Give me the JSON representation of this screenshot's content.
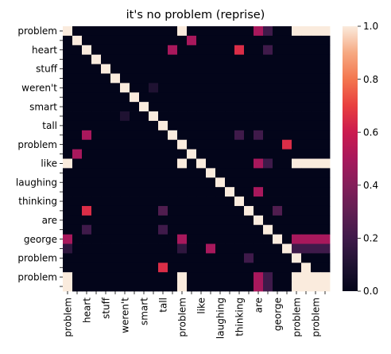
{
  "chart_data": {
    "type": "heatmap",
    "title": "it's no problem (reprise)",
    "labels": [
      "problem",
      "heart",
      "stuff",
      "weren't",
      "smart",
      "tall",
      "problem",
      "like",
      "laughing",
      "thinking",
      "are",
      "george",
      "problem",
      "problem"
    ],
    "row_tick_labels": [
      "problem",
      "",
      "heart",
      "",
      "stuff",
      "",
      "weren't",
      "",
      "smart",
      "",
      "tall",
      "",
      "problem",
      "",
      "like",
      "",
      "laughing",
      "",
      "thinking",
      "",
      "are",
      "",
      "george",
      "",
      "problem",
      "",
      "problem",
      ""
    ],
    "col_tick_labels": [
      "problem",
      "",
      "heart",
      "",
      "stuff",
      "",
      "weren't",
      "",
      "smart",
      "",
      "tall",
      "",
      "problem",
      "",
      "like",
      "",
      "laughing",
      "",
      "thinking",
      "",
      "are",
      "",
      "george",
      "",
      "problem",
      "",
      "problem",
      ""
    ],
    "colorbar": {
      "min": 0.0,
      "max": 1.0,
      "ticks": [
        "0.0",
        "0.2",
        "0.4",
        "0.6",
        "0.8",
        "1.0"
      ]
    },
    "colormap": "rocket",
    "matrix": [
      [
        1,
        0,
        0,
        0,
        0,
        0,
        0,
        0,
        0,
        0,
        0,
        0,
        1,
        0,
        0,
        0,
        0,
        0,
        0,
        0,
        0.5,
        0.2,
        0,
        0,
        1,
        1,
        1,
        1
      ],
      [
        0,
        1,
        0,
        0,
        0,
        0,
        0,
        0,
        0,
        0,
        0,
        0,
        0,
        0.5,
        0,
        0,
        0,
        0,
        0,
        0,
        0,
        0,
        0,
        0,
        0,
        0,
        0,
        0
      ],
      [
        0,
        0,
        1,
        0,
        0,
        0,
        0,
        0,
        0,
        0,
        0,
        0.5,
        0,
        0,
        0,
        0,
        0,
        0,
        0.65,
        0,
        0,
        0.2,
        0,
        0,
        0,
        0,
        0,
        0
      ],
      [
        0,
        0,
        0,
        1,
        0,
        0,
        0,
        0,
        0,
        0,
        0,
        0,
        0,
        0,
        0,
        0,
        0,
        0,
        0,
        0,
        0,
        0,
        0,
        0,
        0,
        0,
        0,
        0
      ],
      [
        0,
        0,
        0,
        0,
        1,
        0,
        0,
        0,
        0,
        0,
        0,
        0,
        0,
        0,
        0,
        0,
        0,
        0,
        0,
        0,
        0,
        0,
        0,
        0,
        0,
        0,
        0,
        0
      ],
      [
        0,
        0,
        0,
        0,
        0,
        1,
        0,
        0,
        0,
        0,
        0,
        0,
        0,
        0,
        0,
        0,
        0,
        0,
        0,
        0,
        0,
        0,
        0,
        0,
        0,
        0,
        0,
        0
      ],
      [
        0,
        0,
        0,
        0,
        0,
        0,
        1,
        0,
        0,
        0.1,
        0,
        0,
        0,
        0,
        0,
        0,
        0,
        0,
        0,
        0,
        0,
        0,
        0,
        0,
        0,
        0,
        0,
        0
      ],
      [
        0,
        0,
        0,
        0,
        0,
        0,
        0,
        1,
        0,
        0,
        0,
        0,
        0,
        0,
        0,
        0,
        0,
        0,
        0,
        0,
        0,
        0,
        0,
        0,
        0,
        0,
        0,
        0
      ],
      [
        0,
        0,
        0,
        0,
        0,
        0,
        0,
        0,
        1,
        0,
        0,
        0,
        0,
        0,
        0,
        0,
        0,
        0,
        0,
        0,
        0,
        0,
        0,
        0,
        0,
        0,
        0,
        0
      ],
      [
        0,
        0,
        0,
        0,
        0,
        0,
        0.1,
        0,
        0,
        1,
        0,
        0,
        0,
        0,
        0,
        0,
        0,
        0,
        0,
        0,
        0,
        0,
        0,
        0,
        0,
        0,
        0,
        0
      ],
      [
        0,
        0,
        0,
        0,
        0,
        0,
        0,
        0,
        0,
        0,
        1,
        0,
        0,
        0,
        0,
        0,
        0,
        0,
        0,
        0,
        0,
        0,
        0,
        0,
        0,
        0,
        0,
        0
      ],
      [
        0,
        0,
        0.5,
        0,
        0,
        0,
        0,
        0,
        0,
        0,
        0,
        1,
        0,
        0,
        0,
        0,
        0,
        0,
        0.2,
        0,
        0.2,
        0,
        0,
        0,
        0,
        0,
        0,
        0
      ],
      [
        0,
        0,
        0,
        0,
        0,
        0,
        0,
        0,
        0,
        0,
        0,
        0,
        1,
        0,
        0,
        0,
        0,
        0,
        0,
        0,
        0,
        0,
        0,
        0.65,
        0,
        0,
        0,
        0
      ],
      [
        0,
        0.5,
        0,
        0,
        0,
        0,
        0,
        0,
        0,
        0,
        0,
        0,
        0,
        1,
        0,
        0,
        0,
        0,
        0,
        0,
        0,
        0,
        0,
        0,
        0,
        0,
        0,
        0
      ],
      [
        1,
        0,
        0,
        0,
        0,
        0,
        0,
        0,
        0,
        0,
        0,
        0,
        1,
        0,
        1,
        0,
        0,
        0,
        0,
        0,
        0.5,
        0.2,
        0,
        0,
        1,
        1,
        1,
        1
      ],
      [
        0,
        0,
        0,
        0,
        0,
        0,
        0,
        0,
        0,
        0,
        0,
        0,
        0,
        0,
        0,
        1,
        0,
        0,
        0,
        0,
        0,
        0,
        0,
        0,
        0,
        0,
        0,
        0
      ],
      [
        0,
        0,
        0,
        0,
        0,
        0,
        0,
        0,
        0,
        0,
        0,
        0,
        0,
        0,
        0,
        0,
        1,
        0,
        0,
        0,
        0,
        0,
        0,
        0,
        0,
        0,
        0,
        0
      ],
      [
        0,
        0,
        0,
        0,
        0,
        0,
        0,
        0,
        0,
        0,
        0,
        0,
        0,
        0,
        0,
        0,
        0,
        1,
        0,
        0,
        0.5,
        0,
        0,
        0,
        0,
        0,
        0,
        0
      ],
      [
        0,
        0,
        0,
        0,
        0,
        0,
        0,
        0,
        0,
        0,
        0,
        0,
        0,
        0,
        0,
        0,
        0,
        0,
        1,
        0,
        0,
        0,
        0,
        0,
        0,
        0,
        0,
        0
      ],
      [
        0,
        0,
        0.65,
        0,
        0,
        0,
        0,
        0,
        0,
        0,
        0.25,
        0,
        0,
        0,
        0,
        0,
        0,
        0,
        0,
        1,
        0,
        0,
        0.25,
        0,
        0,
        0,
        0,
        0
      ],
      [
        0,
        0,
        0,
        0,
        0,
        0,
        0,
        0,
        0,
        0,
        0,
        0,
        0,
        0,
        0,
        0,
        0,
        0,
        0,
        0,
        1,
        0,
        0,
        0,
        0,
        0,
        0,
        0
      ],
      [
        0,
        0,
        0.2,
        0,
        0,
        0,
        0,
        0,
        0,
        0,
        0.2,
        0,
        0,
        0,
        0,
        0,
        0,
        0,
        0,
        0,
        0,
        1,
        0,
        0,
        0,
        0,
        0,
        0
      ],
      [
        0.5,
        0,
        0,
        0,
        0,
        0,
        0,
        0,
        0,
        0,
        0,
        0,
        0.5,
        0,
        0,
        0,
        0,
        0,
        0,
        0,
        0,
        0,
        1,
        0,
        0.5,
        0.5,
        0.5,
        0.5
      ],
      [
        0.15,
        0,
        0,
        0,
        0,
        0,
        0,
        0,
        0,
        0,
        0,
        0,
        0.15,
        0,
        0,
        0.5,
        0,
        0,
        0,
        0,
        0,
        0,
        0,
        1,
        0.2,
        0.2,
        0.2,
        0.2
      ],
      [
        0,
        0,
        0,
        0,
        0,
        0,
        0,
        0,
        0,
        0,
        0,
        0,
        0,
        0,
        0,
        0,
        0,
        0,
        0,
        0.2,
        0,
        0,
        0,
        0,
        1,
        0,
        0,
        0
      ],
      [
        0,
        0,
        0,
        0,
        0,
        0,
        0,
        0,
        0,
        0,
        0.65,
        0,
        0,
        0,
        0,
        0,
        0,
        0,
        0,
        0,
        0,
        0,
        0,
        0,
        0,
        1,
        0,
        0
      ],
      [
        1,
        0,
        0,
        0,
        0,
        0,
        0,
        0,
        0,
        0,
        0,
        0,
        1,
        0,
        0,
        0,
        0,
        0,
        0,
        0,
        0.5,
        0.2,
        0,
        0,
        1,
        1,
        1,
        1
      ],
      [
        1,
        0,
        0,
        0,
        0,
        0,
        0,
        0,
        0,
        0,
        0,
        0,
        1,
        0,
        0,
        0,
        0,
        0,
        0,
        0,
        0.5,
        0.2,
        0,
        0,
        1,
        1,
        1,
        1
      ]
    ]
  }
}
